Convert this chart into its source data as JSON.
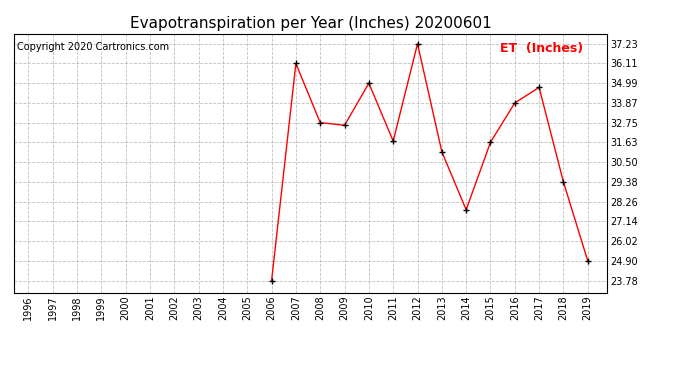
{
  "title": "Evapotranspiration per Year (Inches) 20200601",
  "copyright": "Copyright 2020 Cartronics.com",
  "legend_label": "ET  (Inches)",
  "years": [
    1996,
    1997,
    1998,
    1999,
    2000,
    2001,
    2002,
    2003,
    2004,
    2005,
    2006,
    2007,
    2008,
    2009,
    2010,
    2011,
    2012,
    2013,
    2014,
    2015,
    2016,
    2017,
    2018,
    2019
  ],
  "values": [
    null,
    null,
    null,
    null,
    null,
    null,
    null,
    null,
    null,
    null,
    23.78,
    36.11,
    32.75,
    32.6,
    34.99,
    31.7,
    37.23,
    31.1,
    27.8,
    31.63,
    33.87,
    34.75,
    29.38,
    24.9
  ],
  "yticks": [
    23.78,
    24.9,
    26.02,
    27.14,
    28.26,
    29.38,
    30.5,
    31.63,
    32.75,
    33.87,
    34.99,
    36.11,
    37.23
  ],
  "ytick_labels": [
    "23.78",
    "24.90",
    "26.02",
    "27.14",
    "28.26",
    "29.38",
    "30.50",
    "31.63",
    "32.75",
    "33.87",
    "34.99",
    "36.11",
    "37.23"
  ],
  "line_color": "#ff0000",
  "marker_color": "#000000",
  "background_color": "#ffffff",
  "grid_color": "#b0b0b0",
  "title_fontsize": 11,
  "copyright_fontsize": 7,
  "legend_fontsize": 9,
  "tick_fontsize": 7,
  "ylim_min": 23.1,
  "ylim_max": 37.8
}
